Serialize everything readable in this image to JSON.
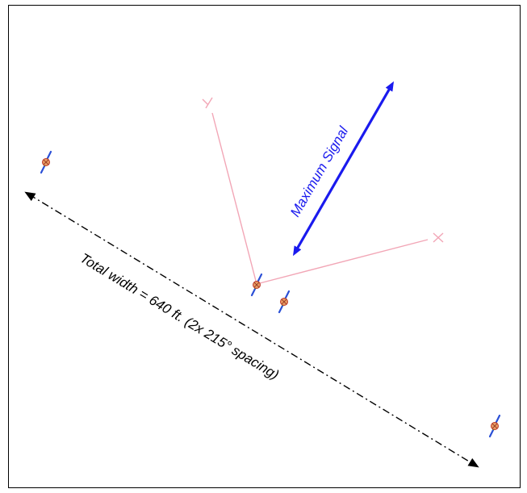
{
  "labels": {
    "maximum_signal": "Maximum Signal",
    "total_width": "Total width = 640 ft. (2x 215° spacing)"
  },
  "colors": {
    "frame": "#000000",
    "signal_arrow": "#1a1aee",
    "width_line": "#000000",
    "radial_lines": "#f2a6b6",
    "antenna_center": "#d96a1e",
    "antenna_green": "#3fa64a",
    "antenna_blue": "#2a4fd6"
  },
  "icons": {
    "antenna_marker": "antenna-element-icon",
    "radial_end": "x-mark-icon"
  }
}
